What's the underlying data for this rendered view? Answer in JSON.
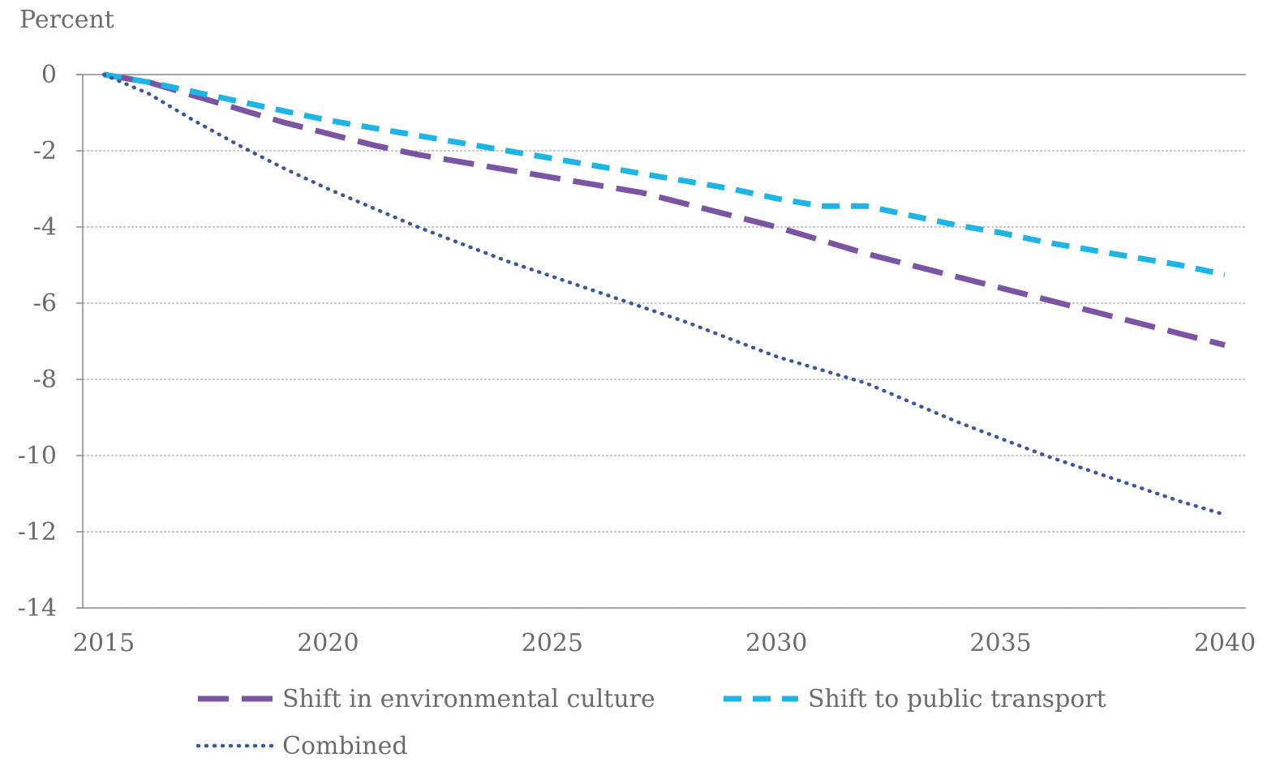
{
  "chart_data": {
    "type": "line",
    "ylabel": "Percent",
    "xlim": [
      2015,
      2040
    ],
    "ylim": [
      -14,
      0
    ],
    "x_ticks": [
      "2015",
      "2020",
      "2025",
      "2030",
      "2035",
      "2040"
    ],
    "y_ticks": [
      "0",
      "-2",
      "-4",
      "-6",
      "-8",
      "-10",
      "-12",
      "-14"
    ],
    "grid": "horizontal dashed",
    "legend_position": "bottom",
    "x": [
      2015,
      2016,
      2017,
      2018,
      2019,
      2020,
      2021,
      2022,
      2023,
      2024,
      2025,
      2026,
      2027,
      2028,
      2029,
      2030,
      2031,
      2032,
      2033,
      2034,
      2035,
      2036,
      2037,
      2038,
      2039,
      2040
    ],
    "series": [
      {
        "name": "Shift in environmental culture",
        "color": "#7b55a3",
        "style": "long-dash",
        "values": [
          0,
          -0.2,
          -0.55,
          -0.9,
          -1.25,
          -1.55,
          -1.85,
          -2.1,
          -2.3,
          -2.5,
          -2.7,
          -2.9,
          -3.1,
          -3.4,
          -3.7,
          -4.0,
          -4.35,
          -4.7,
          -5.0,
          -5.3,
          -5.6,
          -5.9,
          -6.2,
          -6.5,
          -6.8,
          -7.1
        ],
        "legend_label": "Shift in environmental culture"
      },
      {
        "name": "Shift to public transport",
        "color": "#1fb4e6",
        "style": "dash",
        "values": [
          0,
          -0.2,
          -0.45,
          -0.7,
          -0.95,
          -1.2,
          -1.4,
          -1.6,
          -1.8,
          -2.0,
          -2.2,
          -2.4,
          -2.6,
          -2.8,
          -3.0,
          -3.25,
          -3.45,
          -3.45,
          -3.7,
          -3.95,
          -4.15,
          -4.4,
          -4.6,
          -4.8,
          -5.0,
          -5.25
        ],
        "legend_label": "Shift to public transport"
      },
      {
        "name": "Combined",
        "color": "#3b5998",
        "style": "dotted",
        "values": [
          0,
          -0.5,
          -1.2,
          -1.85,
          -2.45,
          -3.0,
          -3.5,
          -4.0,
          -4.45,
          -4.9,
          -5.3,
          -5.7,
          -6.1,
          -6.5,
          -6.95,
          -7.4,
          -7.75,
          -8.1,
          -8.6,
          -9.1,
          -9.55,
          -10.0,
          -10.4,
          -10.8,
          -11.2,
          -11.55
        ],
        "legend_label": "Combined"
      }
    ]
  }
}
